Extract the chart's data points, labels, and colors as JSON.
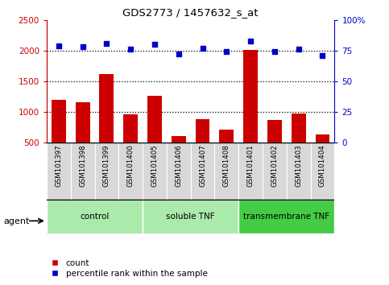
{
  "title": "GDS2773 / 1457632_s_at",
  "samples": [
    "GSM101397",
    "GSM101398",
    "GSM101399",
    "GSM101400",
    "GSM101405",
    "GSM101406",
    "GSM101407",
    "GSM101408",
    "GSM101401",
    "GSM101402",
    "GSM101403",
    "GSM101404"
  ],
  "counts": [
    1200,
    1160,
    1620,
    960,
    1260,
    610,
    880,
    710,
    2010,
    870,
    975,
    630
  ],
  "percentiles": [
    79,
    78,
    81,
    76,
    80,
    72,
    77,
    74,
    83,
    74,
    76,
    71
  ],
  "groups": [
    {
      "label": "control",
      "start": 0,
      "end": 4,
      "color": "#aaeaaa"
    },
    {
      "label": "soluble TNF",
      "start": 4,
      "end": 8,
      "color": "#aaeaaa"
    },
    {
      "label": "transmembrane TNF",
      "start": 8,
      "end": 12,
      "color": "#44cc44"
    }
  ],
  "bar_color": "#cc0000",
  "dot_color": "#0000cc",
  "ylim_left": [
    500,
    2500
  ],
  "ylim_right": [
    0,
    100
  ],
  "yticks_left": [
    500,
    1000,
    1500,
    2000,
    2500
  ],
  "yticks_right": [
    0,
    25,
    50,
    75,
    100
  ],
  "grid_values": [
    1000,
    1500,
    2000
  ],
  "legend_count_label": "count",
  "legend_pct_label": "percentile rank within the sample",
  "agent_label": "agent",
  "bg_color": "#d8d8d8"
}
